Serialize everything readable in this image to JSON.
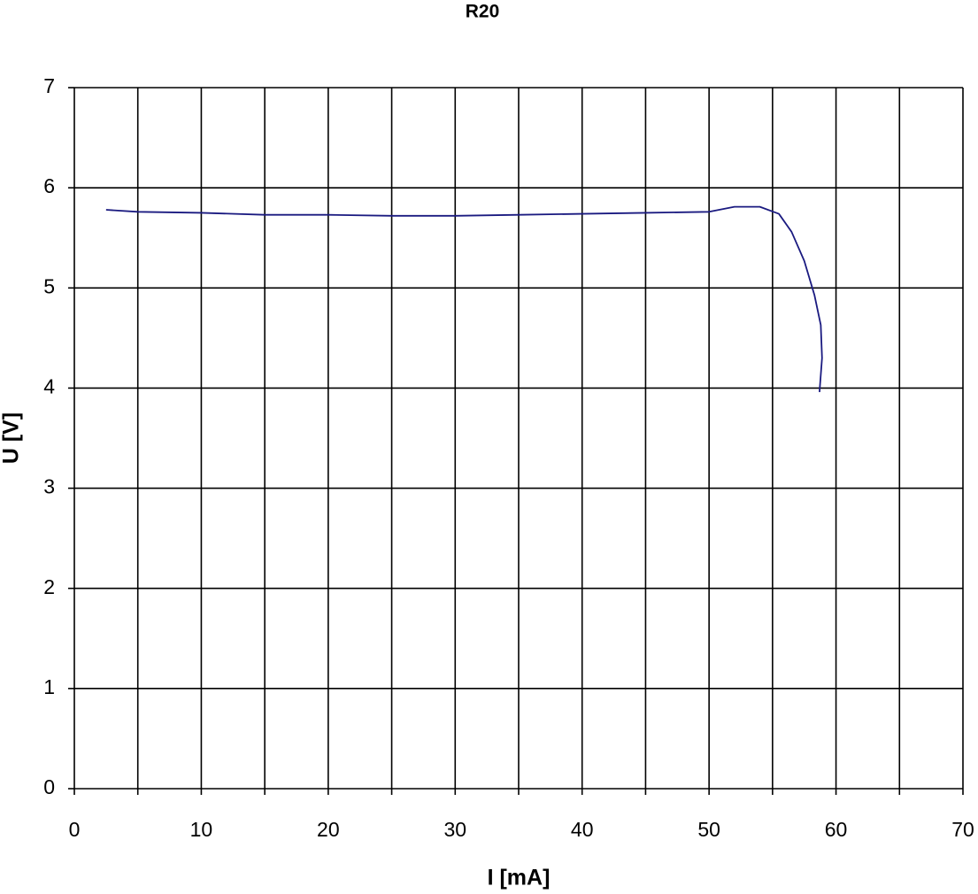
{
  "chart_data": {
    "type": "line",
    "title": "R20",
    "x_label": "I [mA]",
    "y_label": "U [V]",
    "x": [
      2.5,
      5,
      10,
      15,
      20,
      25,
      30,
      35,
      40,
      45,
      50,
      52,
      54,
      55.5,
      56.5,
      57.5,
      58.3,
      58.8,
      58.9,
      58.7
    ],
    "values": [
      5.78,
      5.76,
      5.75,
      5.73,
      5.73,
      5.72,
      5.72,
      5.73,
      5.74,
      5.75,
      5.76,
      5.81,
      5.81,
      5.74,
      5.56,
      5.27,
      4.93,
      4.63,
      4.3,
      3.96
    ],
    "color": "#1a1a80",
    "xlim": [
      0,
      70
    ],
    "xticks": [
      0,
      10,
      20,
      30,
      40,
      50,
      60,
      70
    ],
    "xminorticks": [
      5,
      15,
      25,
      35,
      45,
      55,
      65
    ],
    "ylim": [
      0,
      7
    ],
    "yticks": [
      0,
      1,
      2,
      3,
      4,
      5,
      6,
      7
    ],
    "grid": true
  }
}
